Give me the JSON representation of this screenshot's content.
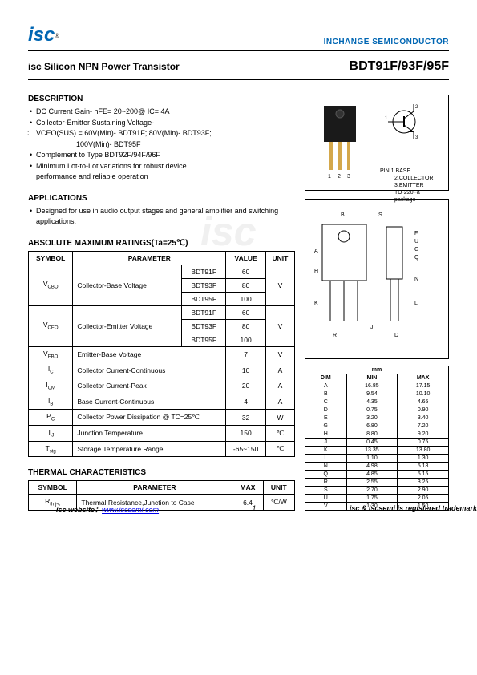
{
  "header": {
    "logo": "isc",
    "logo_sup": "®",
    "company": "INCHANGE SEMICONDUCTOR"
  },
  "title": {
    "left": "isc Silicon NPN Power Transistor",
    "right": "BDT91F/93F/95F"
  },
  "description": {
    "heading": "DESCRIPTION",
    "items": [
      "DC Current Gain- hFE= 20~200@ IC= 4A",
      "Collector-Emitter Sustaining Voltage-",
      "VCEO(SUS) = 60V(Min)- BDT91F; 80V(Min)- BDT93F;",
      "100V(Min)- BDT95F",
      "Complement to Type BDT92F/94F/96F",
      "Minimum Lot-to-Lot variations for robust device",
      "performance and reliable operation"
    ]
  },
  "applications": {
    "heading": "APPLICATIONS",
    "text": "Designed for use in audio output stages and general amplifier and switching applications."
  },
  "ratings": {
    "heading": "ABSOLUTE MAXIMUM RATINGS(Ta=25℃)",
    "cols": [
      "SYMBOL",
      "PARAMETER",
      "VALUE",
      "UNIT"
    ],
    "rows": [
      {
        "sym": "VCBO",
        "param": "Collector-Base Voltage",
        "sub": [
          [
            "BDT91F",
            "60"
          ],
          [
            "BDT93F",
            "80"
          ],
          [
            "BDT95F",
            "100"
          ]
        ],
        "unit": "V"
      },
      {
        "sym": "VCEO",
        "param": "Collector-Emitter Voltage",
        "sub": [
          [
            "BDT91F",
            "60"
          ],
          [
            "BDT93F",
            "80"
          ],
          [
            "BDT95F",
            "100"
          ]
        ],
        "unit": "V"
      },
      {
        "sym": "VEBO",
        "param": "Emitter-Base Voltage",
        "val": "7",
        "unit": "V"
      },
      {
        "sym": "IC",
        "param": "Collector Current-Continuous",
        "val": "10",
        "unit": "A"
      },
      {
        "sym": "ICM",
        "param": "Collector Current-Peak",
        "val": "20",
        "unit": "A"
      },
      {
        "sym": "IB",
        "param": "Base Current-Continuous",
        "val": "4",
        "unit": "A"
      },
      {
        "sym": "PC",
        "param": "Collector Power Dissipation @ TC=25℃",
        "val": "32",
        "unit": "W"
      },
      {
        "sym": "TJ",
        "param": "Junction Temperature",
        "val": "150",
        "unit": "℃"
      },
      {
        "sym": "Tstg",
        "param": "Storage Temperature Range",
        "val": "-65~150",
        "unit": "℃"
      }
    ]
  },
  "thermal": {
    "heading": "THERMAL CHARACTERISTICS",
    "cols": [
      "SYMBOL",
      "PARAMETER",
      "MAX",
      "UNIT"
    ],
    "row": {
      "sym": "Rth j-c",
      "param": "Thermal Resistance,Junction to Case",
      "max": "6.4",
      "unit": "℃/W"
    }
  },
  "package": {
    "pin_heading": "PIN",
    "pins": [
      "1.BASE",
      "2.COLLECTOR",
      "3.EMITTER"
    ],
    "pkg_name": "TO-220Fa package",
    "pin_nums": "1  2  3"
  },
  "dimensions": {
    "unit_head": "mm",
    "cols": [
      "DIM",
      "MIN",
      "MAX"
    ],
    "rows": [
      [
        "A",
        "16.85",
        "17.15"
      ],
      [
        "B",
        "9.54",
        "10.10"
      ],
      [
        "C",
        "4.35",
        "4.65"
      ],
      [
        "D",
        "0.75",
        "0.90"
      ],
      [
        "E",
        "3.20",
        "3.40"
      ],
      [
        "G",
        "6.80",
        "7.20"
      ],
      [
        "H",
        "8.80",
        "9.20"
      ],
      [
        "J",
        "0.45",
        "0.75"
      ],
      [
        "K",
        "13.35",
        "13.80"
      ],
      [
        "L",
        "1.10",
        "1.30"
      ],
      [
        "N",
        "4.98",
        "5.18"
      ],
      [
        "Q",
        "4.85",
        "5.15"
      ],
      [
        "R",
        "2.55",
        "3.25"
      ],
      [
        "S",
        "2.70",
        "2.90"
      ],
      [
        "U",
        "1.75",
        "2.05"
      ],
      [
        "V",
        "1.30",
        "1.50"
      ]
    ],
    "drawing_labels": [
      "B",
      "S",
      "F",
      "A",
      "U",
      "G",
      "Q",
      "H",
      "N",
      "L",
      "K",
      "J",
      "R",
      "D"
    ]
  },
  "footer": {
    "site_label": "isc website：",
    "site_url": "www.iscsemi.com",
    "page": "1",
    "trademark": "isc & iscsemi is registered trademark"
  },
  "colors": {
    "brand": "#0066b3",
    "link": "#0000ee",
    "border": "#000000",
    "bg": "#ffffff"
  }
}
